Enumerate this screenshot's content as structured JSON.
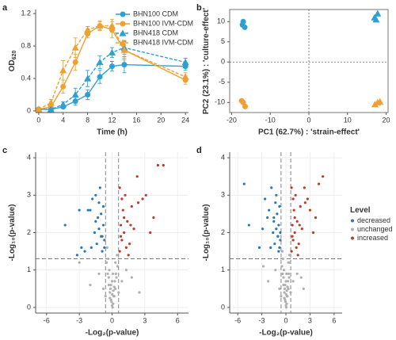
{
  "chart_data": [
    {
      "type": "line",
      "panel": "a",
      "xlabel": "Time (h)",
      "ylabel": "OD",
      "ylabel_sub": "620",
      "x": [
        0,
        2,
        4,
        6,
        8,
        10,
        12,
        14,
        24
      ],
      "xlim": [
        -0.5,
        24.5
      ],
      "xticks": [
        0,
        4,
        8,
        12,
        16,
        20,
        24
      ],
      "ylim": [
        -0.02,
        1.25
      ],
      "yticks": [
        0,
        0.4,
        0.8,
        1.2
      ],
      "legend": "upper right",
      "series": [
        {
          "name": "BHN100 CDM",
          "color": "#2e9fd1",
          "marker": "circle",
          "linestyle": "solid",
          "values": [
            0.02,
            0.02,
            0.05,
            0.12,
            0.2,
            0.42,
            0.55,
            0.57,
            0.55
          ],
          "errors": [
            0.01,
            0.01,
            0.02,
            0.05,
            0.06,
            0.08,
            0.06,
            0.1,
            0.05
          ]
        },
        {
          "name": "BHN100 IVM-CDM",
          "color": "#f0a030",
          "marker": "circle",
          "linestyle": "solid",
          "values": [
            0.02,
            0.05,
            0.3,
            0.6,
            0.95,
            1.05,
            1.0,
            0.75,
            0.38
          ],
          "errors": [
            0.01,
            0.02,
            0.08,
            0.1,
            0.05,
            0.05,
            0.1,
            0.12,
            0.05
          ]
        },
        {
          "name": "BHN418 CDM",
          "color": "#2e9fd1",
          "marker": "triangle",
          "linestyle": "dashed",
          "values": [
            0.02,
            0.02,
            0.08,
            0.2,
            0.4,
            0.6,
            0.72,
            0.78,
            0.6
          ],
          "errors": [
            0.01,
            0.01,
            0.03,
            0.08,
            0.1,
            0.08,
            0.06,
            0.08,
            0.05
          ]
        },
        {
          "name": "BHN418 IVM-CDM",
          "color": "#f0a030",
          "marker": "triangle",
          "linestyle": "dashed",
          "values": [
            0.02,
            0.1,
            0.5,
            0.78,
            1.0,
            1.05,
            1.05,
            0.75,
            0.42
          ],
          "errors": [
            0.01,
            0.04,
            0.12,
            0.12,
            0.04,
            0.06,
            0.08,
            0.1,
            0.05
          ]
        }
      ]
    },
    {
      "type": "scatter",
      "panel": "b",
      "xlabel": "PC1 (62.7%) : 'strain-effect'",
      "ylabel": "PC2 (23.1%) : 'culture-effect'",
      "xlim": [
        -20.5,
        20.5
      ],
      "xticks": [
        -20,
        -10,
        0,
        10,
        20
      ],
      "ylim": [
        -12.5,
        13
      ],
      "yticks": [
        -10,
        -5,
        0,
        5,
        10
      ],
      "frame": true,
      "ref_lines": {
        "x": [
          0
        ],
        "y": [
          0
        ]
      },
      "ref_style": "dotted",
      "series": [
        {
          "color": "#2e9fd1",
          "marker": "circle",
          "x": [
            -17.2,
            -16.6,
            -17.0
          ],
          "y": [
            9.2,
            8.6,
            10.0
          ]
        },
        {
          "color": "#2e9fd1",
          "marker": "triangle",
          "x": [
            17.0,
            17.8,
            17.4
          ],
          "y": [
            11.0,
            12.0,
            10.5
          ]
        },
        {
          "color": "#f0a030",
          "marker": "circle",
          "x": [
            -17.0,
            -16.5,
            -17.4
          ],
          "y": [
            -10.0,
            -11.0,
            -9.6
          ]
        },
        {
          "color": "#f0a030",
          "marker": "triangle",
          "x": [
            17.8,
            17.1,
            18.4
          ],
          "y": [
            -10.0,
            -10.5,
            -9.8
          ]
        }
      ]
    },
    {
      "type": "scatter",
      "panel": "c",
      "xlabel": "-Log₂(p-value)",
      "ylabel": "-Log₁₀(p-value)",
      "xlim": [
        -7,
        7
      ],
      "xticks": [
        -6,
        -3,
        0,
        3,
        6
      ],
      "ylim": [
        -0.15,
        4.15
      ],
      "yticks": [
        0,
        1,
        2,
        3,
        4
      ],
      "grid": true,
      "ref_lines": {
        "x": [
          -0.6,
          0.6
        ],
        "y": [
          1.3
        ]
      },
      "ref_style": "dashed",
      "series": [
        {
          "color": "#2878b5",
          "marker": "dot",
          "x": [
            -4.3,
            -3.2,
            -2.5,
            -2.0,
            -1.8,
            -1.5,
            -1.3,
            -1.2,
            -1.0,
            -0.9,
            -0.8,
            -0.7,
            -2.2,
            -1.6,
            -1.1,
            -0.9,
            -3.0,
            -1.4,
            -1.0,
            -0.8,
            -1.9,
            -1.2,
            -0.7,
            -2.8,
            -1.5
          ],
          "y": [
            2.2,
            1.4,
            1.5,
            2.6,
            2.9,
            3.0,
            2.4,
            2.8,
            2.5,
            1.9,
            2.2,
            1.6,
            2.6,
            2.0,
            3.2,
            1.5,
            2.6,
            1.7,
            1.9,
            2.7,
            1.6,
            2.1,
            1.8,
            1.6,
            2.3
          ]
        },
        {
          "color": "#b0b0b0",
          "marker": "dot",
          "x": [
            -0.5,
            -0.4,
            -0.3,
            -0.2,
            -0.1,
            0,
            0.1,
            0.2,
            0.3,
            0.4,
            0.5,
            -0.45,
            -0.25,
            0.05,
            0.25,
            0.45,
            -0.35,
            -0.15,
            0.15,
            0.35,
            -0.05,
            0.02,
            -0.1,
            0.12,
            0.3,
            -0.3,
            -0.2,
            0.2,
            0,
            0.08,
            -1.2,
            -2.0,
            1.3,
            2.5,
            -0.8,
            0.9,
            -3,
            1.8,
            -0.6,
            0.6
          ],
          "y": [
            1.2,
            0.9,
            0.6,
            0.4,
            0.2,
            0.05,
            0.1,
            0.3,
            0.5,
            0.8,
            1.1,
            1.6,
            1.0,
            0.0,
            0.7,
            1.4,
            1.3,
            0.5,
            0.3,
            0.9,
            0.15,
            0.35,
            0.6,
            0.45,
            1.2,
            0.8,
            0.25,
            0.55,
            0.7,
            0.9,
            0.9,
            0.6,
            1.0,
            0.4,
            0.5,
            0.7,
            1.2,
            0.8,
            0.3,
            0.4
          ]
        },
        {
          "color": "#c0392b",
          "marker": "dot",
          "x": [
            0.7,
            0.8,
            0.9,
            1.0,
            1.1,
            1.2,
            1.4,
            1.6,
            1.8,
            2.0,
            2.3,
            2.8,
            3.1,
            3.5,
            4.2,
            4.7,
            1.5,
            0.9,
            1.3,
            2.4,
            0.8,
            1.1,
            3.8,
            1.7,
            0.7
          ],
          "y": [
            1.5,
            2.2,
            1.8,
            2.6,
            2.0,
            3.0,
            2.3,
            1.7,
            2.7,
            2.1,
            3.5,
            2.9,
            3.0,
            2.0,
            3.8,
            3.8,
            1.4,
            2.9,
            1.6,
            2.8,
            1.9,
            2.4,
            2.4,
            2.2,
            3.2
          ]
        }
      ]
    },
    {
      "type": "scatter",
      "panel": "d",
      "xlabel": "-Log₂(p-value)",
      "ylabel": "-Log₁₀(p-value)",
      "xlim": [
        -7,
        7
      ],
      "xticks": [
        -6,
        -3,
        0,
        3,
        6
      ],
      "ylim": [
        -0.15,
        4.15
      ],
      "yticks": [
        0,
        1,
        2,
        3,
        4
      ],
      "grid": true,
      "ref_lines": {
        "x": [
          -0.6,
          0.6
        ],
        "y": [
          1.3
        ]
      },
      "ref_style": "dashed",
      "legend_title": "Level",
      "series": [
        {
          "name": "decreased",
          "color": "#2878b5",
          "marker": "dot",
          "x": [
            -5.2,
            -4.6,
            -3.3,
            -2.6,
            -2.1,
            -1.8,
            -1.5,
            -1.3,
            -1.1,
            -1.0,
            -0.9,
            -0.8,
            -0.7,
            -2.3,
            -1.6,
            -1.2,
            -0.9,
            -2.9,
            -1.4,
            -1.0,
            -0.8,
            -1.9,
            -1.2,
            -0.7,
            -1.5
          ],
          "y": [
            3.3,
            2.2,
            1.6,
            2.9,
            2.6,
            3.2,
            2.4,
            2.8,
            2.5,
            1.9,
            2.2,
            1.6,
            2.0,
            2.4,
            2.0,
            3.0,
            1.5,
            2.1,
            1.7,
            1.9,
            2.7,
            1.6,
            2.1,
            1.8,
            2.3
          ]
        },
        {
          "name": "unchanged",
          "color": "#b0b0b0",
          "marker": "dot",
          "x": [
            -0.5,
            -0.4,
            -0.3,
            -0.2,
            -0.1,
            0,
            0.1,
            0.2,
            0.3,
            0.4,
            0.5,
            -0.45,
            -0.25,
            0.05,
            0.25,
            0.45,
            -0.35,
            -0.15,
            0.15,
            0.35,
            -0.05,
            0.02,
            -0.1,
            0.12,
            0.3,
            -0.3,
            -0.2,
            0.2,
            0,
            0.08,
            -1.3,
            -2.2,
            1.4,
            2.2,
            -0.8,
            0.9,
            -2.8,
            1.9,
            -0.6,
            0.6
          ],
          "y": [
            1.1,
            0.9,
            0.6,
            0.4,
            0.2,
            0.05,
            0.1,
            0.3,
            0.5,
            0.8,
            1.2,
            1.5,
            1.0,
            0.0,
            0.7,
            1.4,
            1.3,
            0.5,
            0.3,
            0.9,
            0.15,
            0.35,
            0.6,
            0.45,
            1.2,
            0.8,
            0.25,
            0.55,
            0.7,
            0.9,
            1.0,
            0.7,
            0.9,
            0.5,
            0.5,
            0.7,
            1.1,
            0.8,
            0.3,
            0.4
          ]
        },
        {
          "name": "increased",
          "color": "#c0392b",
          "marker": "dot",
          "x": [
            0.7,
            0.8,
            0.9,
            1.0,
            1.1,
            1.2,
            1.4,
            1.6,
            1.8,
            2.0,
            2.3,
            2.7,
            3.0,
            3.4,
            4.1,
            4.6,
            1.5,
            0.9,
            1.3,
            2.4,
            0.8,
            1.1,
            3.7,
            1.7,
            0.7
          ],
          "y": [
            1.5,
            2.2,
            1.8,
            2.6,
            2.0,
            3.0,
            2.3,
            1.7,
            2.7,
            2.1,
            3.2,
            2.9,
            2.6,
            2.0,
            3.3,
            3.5,
            1.4,
            2.9,
            1.6,
            2.8,
            1.9,
            2.4,
            2.4,
            2.2,
            3.2
          ]
        }
      ]
    }
  ]
}
